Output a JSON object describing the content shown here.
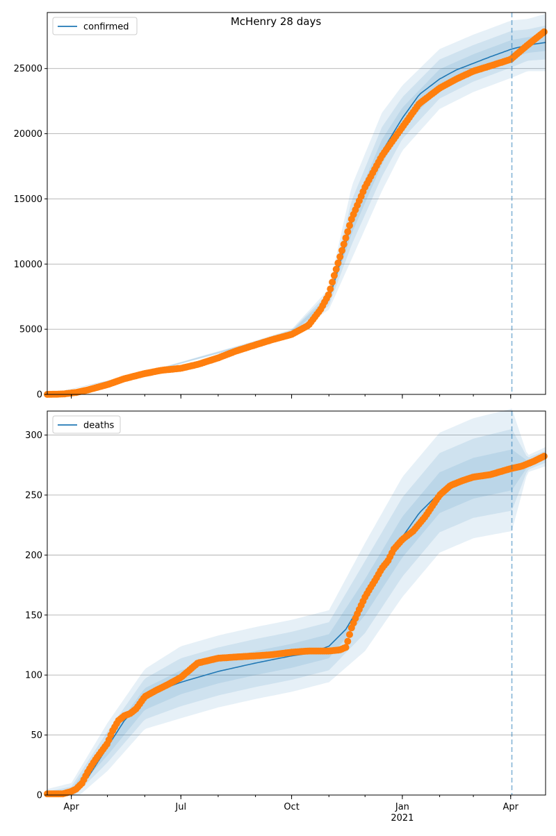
{
  "figure_title": "McHenry 28 days",
  "colors": {
    "model": "#1f77b4",
    "observed": "#ff7f0e",
    "band": "#1f77b4",
    "grid": "#b0b0b0"
  },
  "chart_data": [
    {
      "type": "line",
      "name": "confirmed",
      "legend": [
        "confirmed"
      ],
      "legend_position": "upper-left",
      "x_range": [
        "2020-03-12",
        "2021-04-30"
      ],
      "ylim": [
        0,
        29300
      ],
      "yticks": [
        0,
        5000,
        10000,
        15000,
        20000,
        25000
      ],
      "xticks": [],
      "grid": "horizontal",
      "forecast_start": "2021-04-02",
      "model": {
        "x": [
          "2020-03-12",
          "2020-04-01",
          "2020-05-01",
          "2020-06-01",
          "2020-07-01",
          "2020-08-01",
          "2020-09-01",
          "2020-10-01",
          "2020-10-15",
          "2020-11-01",
          "2020-11-10",
          "2020-11-20",
          "2020-12-01",
          "2020-12-15",
          "2021-01-01",
          "2021-01-15",
          "2021-02-01",
          "2021-02-15",
          "2021-03-01",
          "2021-03-15",
          "2021-04-02",
          "2021-04-15",
          "2021-04-30"
        ],
        "y": [
          0,
          120,
          700,
          1650,
          2100,
          3000,
          4000,
          4800,
          5500,
          7300,
          10000,
          13200,
          16200,
          18600,
          21200,
          23000,
          24200,
          24900,
          25400,
          25900,
          26500,
          26800,
          27000
        ]
      },
      "bands": {
        "x": [
          "2020-03-12",
          "2020-06-01",
          "2020-09-01",
          "2020-10-01",
          "2020-11-01",
          "2020-11-20",
          "2020-12-15",
          "2021-01-01",
          "2021-02-01",
          "2021-03-01",
          "2021-04-02",
          "2021-04-15",
          "2021-04-30"
        ],
        "center": [
          0,
          1650,
          4000,
          4800,
          7300,
          13200,
          18600,
          21200,
          24200,
          25400,
          26500,
          26800,
          27000
        ],
        "spread_outer": [
          0,
          60,
          120,
          200,
          800,
          2800,
          3000,
          2500,
          2300,
          2200,
          2200,
          2000,
          2200
        ],
        "spread_mid": [
          0,
          40,
          80,
          140,
          500,
          1700,
          1900,
          1600,
          1500,
          1400,
          1400,
          1200,
          1300
        ],
        "spread_inner": [
          0,
          20,
          40,
          70,
          250,
          850,
          950,
          800,
          750,
          700,
          700,
          600,
          650
        ]
      },
      "observed": {
        "x": [
          "2020-03-12",
          "2020-03-25",
          "2020-04-05",
          "2020-04-15",
          "2020-05-01",
          "2020-05-15",
          "2020-06-01",
          "2020-06-15",
          "2020-07-01",
          "2020-07-15",
          "2020-08-01",
          "2020-08-15",
          "2020-09-01",
          "2020-09-15",
          "2020-10-01",
          "2020-10-15",
          "2020-10-25",
          "2020-11-01",
          "2020-11-05",
          "2020-11-10",
          "2020-11-15",
          "2020-11-20",
          "2020-11-25",
          "2020-12-01",
          "2020-12-15",
          "2021-01-01",
          "2021-01-15",
          "2021-02-01",
          "2021-02-15",
          "2021-03-01",
          "2021-03-15",
          "2021-04-01",
          "2021-04-15",
          "2021-04-30"
        ],
        "y": [
          0,
          30,
          150,
          350,
          750,
          1200,
          1600,
          1850,
          2000,
          2300,
          2800,
          3300,
          3800,
          4200,
          4600,
          5300,
          6500,
          7700,
          9000,
          10500,
          12000,
          13500,
          14600,
          15900,
          18300,
          20500,
          22300,
          23500,
          24200,
          24800,
          25200,
          25700,
          26800,
          27900
        ]
      }
    },
    {
      "type": "line",
      "name": "deaths",
      "legend": [
        "deaths"
      ],
      "legend_position": "upper-left",
      "x_range": [
        "2020-03-12",
        "2021-04-30"
      ],
      "ylim": [
        0,
        320
      ],
      "yticks": [
        0,
        50,
        100,
        150,
        200,
        250,
        300
      ],
      "xticks": [
        "Apr",
        "Jul",
        "Oct",
        "Jan",
        "Apr"
      ],
      "xticks_at": [
        "2020-04-01",
        "2020-07-01",
        "2020-10-01",
        "2021-01-01",
        "2021-04-01"
      ],
      "year_label": "2021",
      "grid": "horizontal",
      "forecast_start": "2021-04-02",
      "model": {
        "x": [
          "2020-03-12",
          "2020-04-01",
          "2020-04-15",
          "2020-05-01",
          "2020-05-15",
          "2020-06-01",
          "2020-06-15",
          "2020-07-01",
          "2020-08-01",
          "2020-09-01",
          "2020-10-01",
          "2020-10-15",
          "2020-11-01",
          "2020-11-15",
          "2020-12-01",
          "2020-12-15",
          "2021-01-01",
          "2021-01-15",
          "2021-02-01",
          "2021-02-15",
          "2021-03-01",
          "2021-03-15",
          "2021-04-02",
          "2021-04-15",
          "2021-04-30"
        ],
        "y": [
          0,
          2,
          15,
          40,
          62,
          80,
          88,
          94,
          103,
          110,
          116,
          118,
          124,
          138,
          165,
          190,
          215,
          235,
          252,
          260,
          264,
          267,
          271,
          276,
          282
        ]
      },
      "bands": {
        "x": [
          "2020-03-12",
          "2020-04-01",
          "2020-05-01",
          "2020-06-01",
          "2020-07-01",
          "2020-08-01",
          "2020-09-01",
          "2020-10-01",
          "2020-11-01",
          "2020-12-01",
          "2021-01-01",
          "2021-02-01",
          "2021-03-01",
          "2021-04-02",
          "2021-04-15",
          "2021-04-30"
        ],
        "center": [
          0,
          2,
          40,
          80,
          94,
          103,
          110,
          116,
          124,
          165,
          215,
          252,
          264,
          271,
          276,
          282
        ],
        "spread_outer": [
          5,
          8,
          20,
          25,
          30,
          30,
          30,
          30,
          30,
          45,
          50,
          50,
          50,
          51,
          7,
          8
        ],
        "spread_mid": [
          3,
          5,
          13,
          17,
          20,
          20,
          20,
          20,
          20,
          30,
          33,
          33,
          33,
          34,
          5,
          5
        ],
        "spread_inner": [
          1.5,
          2.5,
          7,
          9,
          10,
          10,
          10,
          10,
          10,
          15,
          17,
          17,
          17,
          17,
          2.5,
          2.5
        ]
      },
      "observed": {
        "x": [
          "2020-03-12",
          "2020-03-25",
          "2020-04-01",
          "2020-04-05",
          "2020-04-10",
          "2020-04-15",
          "2020-04-20",
          "2020-04-25",
          "2020-05-01",
          "2020-05-05",
          "2020-05-10",
          "2020-05-15",
          "2020-05-20",
          "2020-05-25",
          "2020-06-01",
          "2020-06-10",
          "2020-06-20",
          "2020-07-01",
          "2020-07-15",
          "2020-08-01",
          "2020-08-15",
          "2020-09-01",
          "2020-09-15",
          "2020-10-01",
          "2020-10-15",
          "2020-11-01",
          "2020-11-10",
          "2020-11-15",
          "2020-11-16",
          "2020-11-20",
          "2020-11-25",
          "2020-12-01",
          "2020-12-05",
          "2020-12-10",
          "2020-12-15",
          "2020-12-20",
          "2020-12-25",
          "2021-01-01",
          "2021-01-10",
          "2021-01-20",
          "2021-02-01",
          "2021-02-10",
          "2021-02-20",
          "2021-03-01",
          "2021-03-15",
          "2021-04-01",
          "2021-04-10",
          "2021-04-20",
          "2021-04-30"
        ],
        "y": [
          1,
          1,
          3,
          5,
          10,
          20,
          28,
          35,
          43,
          53,
          62,
          66,
          68,
          72,
          82,
          87,
          92,
          98,
          110,
          114,
          115,
          116,
          117,
          119,
          120,
          120,
          121,
          123,
          126,
          140,
          152,
          165,
          172,
          180,
          189,
          195,
          205,
          213,
          220,
          232,
          250,
          258,
          262,
          265,
          267,
          272,
          274,
          278,
          283
        ]
      }
    }
  ]
}
